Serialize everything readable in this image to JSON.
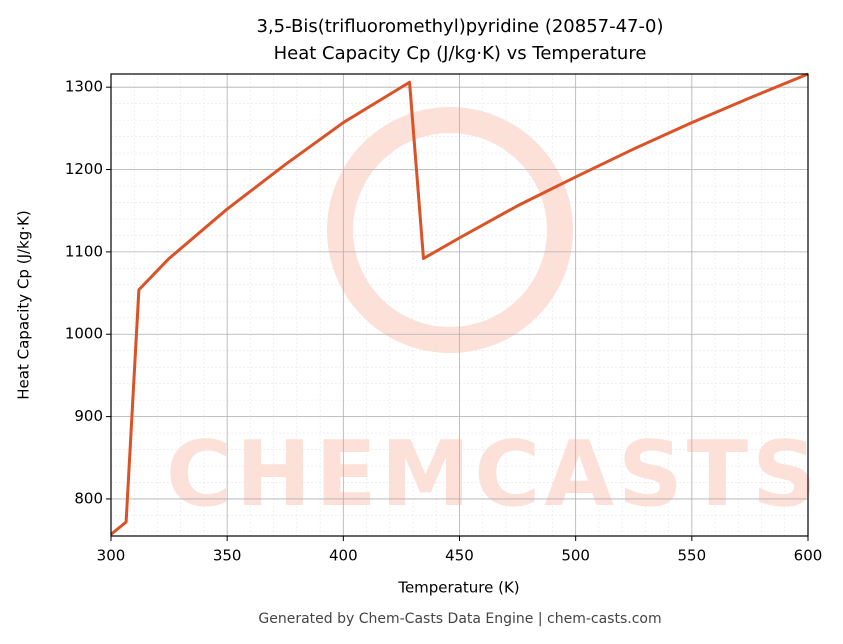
{
  "chart_data": {
    "type": "line",
    "title": "3,5-Bis(trifluoromethyl)pyridine (20857-47-0)",
    "subtitle": "Heat Capacity Cp (J/kg·K) vs Temperature",
    "x_label": "Temperature (K)",
    "y_label": "Heat Capacity Cp (J/kg·K)",
    "footer": "Generated by Chem-Casts Data Engine | chem-casts.com",
    "watermark": "CHEMCASTS",
    "x": [
      300,
      306.5,
      312,
      325,
      350,
      375,
      400,
      428.5,
      434.5,
      450,
      475,
      500,
      525,
      550,
      575,
      600
    ],
    "series": [
      {
        "name": "Cp",
        "color": "#d95327",
        "values": [
          757,
          772,
          1054,
          1092,
          1152,
          1206,
          1257,
          1306,
          1092,
          1117,
          1156,
          1191,
          1225,
          1257,
          1287,
          1316
        ]
      }
    ],
    "xlim": [
      300,
      600
    ],
    "ylim": [
      755,
      1316
    ],
    "xticks": [
      300,
      350,
      400,
      450,
      500,
      550,
      600
    ],
    "yticks": [
      800,
      900,
      1000,
      1100,
      1200,
      1300
    ],
    "grid": true
  }
}
